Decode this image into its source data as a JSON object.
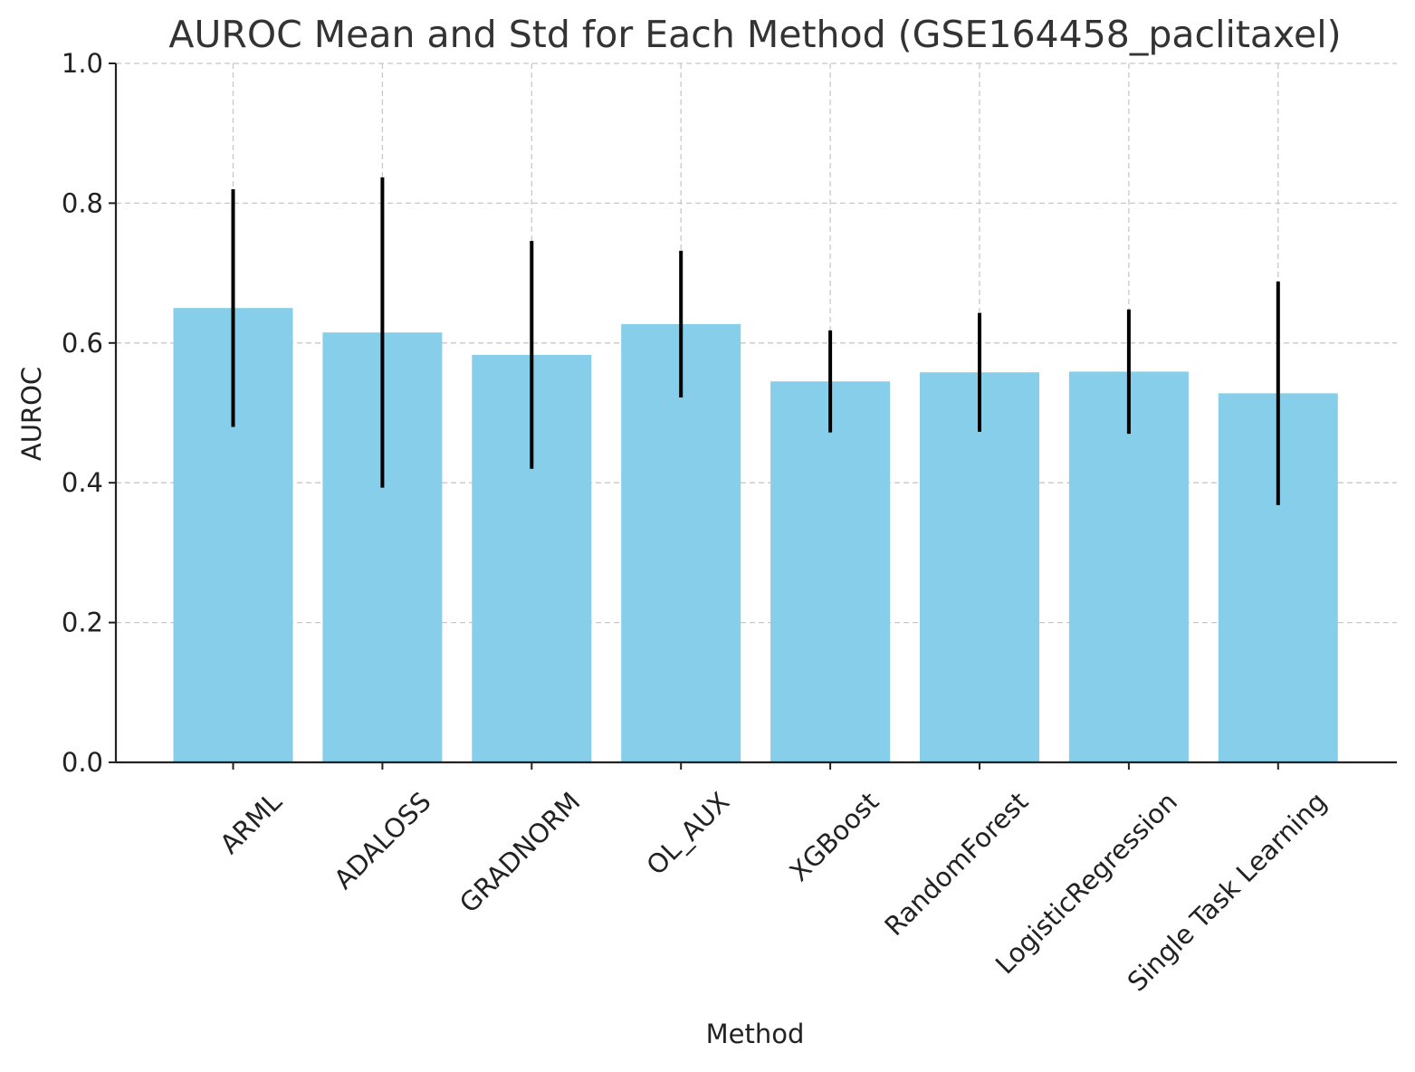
{
  "chart_data": {
    "type": "bar",
    "title": "AUROC Mean and Std for Each Method (GSE164458_paclitaxel)",
    "xlabel": "Method",
    "ylabel": "AUROC",
    "categories": [
      "ARML",
      "ADALOSS",
      "GRADNORM",
      "OL_AUX",
      "XGBoost",
      "RandomForest",
      "LogisticRegression",
      "Single Task Learning"
    ],
    "values": [
      0.65,
      0.615,
      0.583,
      0.627,
      0.545,
      0.558,
      0.559,
      0.528
    ],
    "errors": [
      0.17,
      0.222,
      0.163,
      0.105,
      0.073,
      0.085,
      0.089,
      0.16
    ],
    "ylim": [
      0,
      1.0
    ],
    "yticks": [
      "0.0",
      "0.2",
      "0.4",
      "0.6",
      "0.8",
      "1.0"
    ],
    "ytick_values": [
      0,
      0.2,
      0.4,
      0.6,
      0.8,
      1.0
    ],
    "grid": true,
    "bar_color": "#87CEEB",
    "error_color": "#000000"
  }
}
